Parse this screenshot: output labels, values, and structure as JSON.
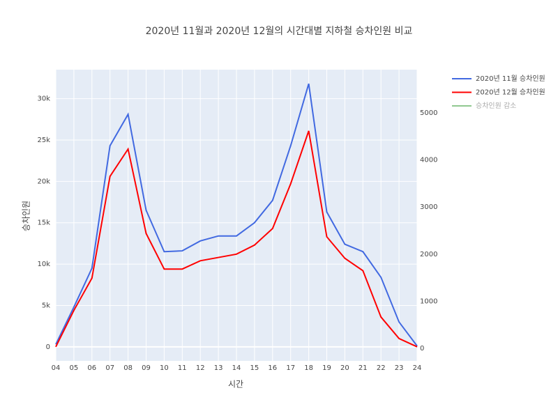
{
  "chart_data": {
    "type": "line",
    "title": "2020년 11월과 2020년 12월의 시간대별 지하철 승차인원 비교",
    "xlabel": "시간",
    "ylabel": "승차인원",
    "categories": [
      "04",
      "05",
      "06",
      "07",
      "08",
      "09",
      "10",
      "11",
      "12",
      "13",
      "14",
      "15",
      "16",
      "17",
      "18",
      "19",
      "20",
      "21",
      "22",
      "23",
      "24"
    ],
    "series": [
      {
        "name": "2020년 11월 승차인원",
        "color": "#4169e1",
        "values": [
          300,
          4800,
          9500,
          24300,
          28100,
          16500,
          11500,
          11600,
          12800,
          13400,
          13400,
          15000,
          17700,
          24300,
          31800,
          16300,
          12400,
          11500,
          8400,
          3000,
          100
        ]
      },
      {
        "name": "2020년 12월 승차인원",
        "color": "#ff0000",
        "values": [
          0,
          4400,
          8300,
          20600,
          23900,
          13700,
          9400,
          9400,
          10400,
          10800,
          11200,
          12300,
          14300,
          19700,
          26100,
          13300,
          10700,
          9200,
          3600,
          1000,
          0
        ]
      },
      {
        "name": "승차인원 감소",
        "color": "#90c890",
        "axis": "y2",
        "visible": false
      }
    ],
    "ylim": [
      -1700,
      33500
    ],
    "yticks": [
      0,
      {
        "value": 5000,
        "label": "5k"
      },
      {
        "value": 10000,
        "label": "10k"
      },
      {
        "value": 15000,
        "label": "15k"
      },
      {
        "value": 20000,
        "label": "20k"
      },
      {
        "value": 25000,
        "label": "25k"
      },
      {
        "value": 30000,
        "label": "30k"
      }
    ],
    "y2lim": [
      -266,
      5917
    ],
    "y2ticks": [
      0,
      1000,
      2000,
      3000,
      4000,
      5000
    ],
    "grid": true
  }
}
